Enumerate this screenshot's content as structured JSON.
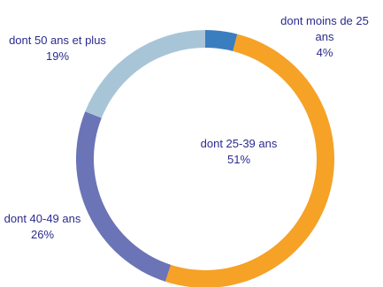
{
  "chart_data": {
    "type": "pie",
    "variant": "donut",
    "title": "",
    "slices": [
      {
        "label_lines": [
          "dont moins de 25",
          "ans"
        ],
        "value": 4,
        "display": "4%",
        "color": "#3b7ebf"
      },
      {
        "label_lines": [
          "dont 25-39 ans"
        ],
        "value": 51,
        "display": "51%",
        "color": "#f5a227"
      },
      {
        "label_lines": [
          "dont 40-49 ans"
        ],
        "value": 26,
        "display": "26%",
        "color": "#6b74b6"
      },
      {
        "label_lines": [
          "dont 50 ans et plus"
        ],
        "value": 19,
        "display": "19%",
        "color": "#a8c5d8"
      }
    ],
    "legend": "none"
  }
}
